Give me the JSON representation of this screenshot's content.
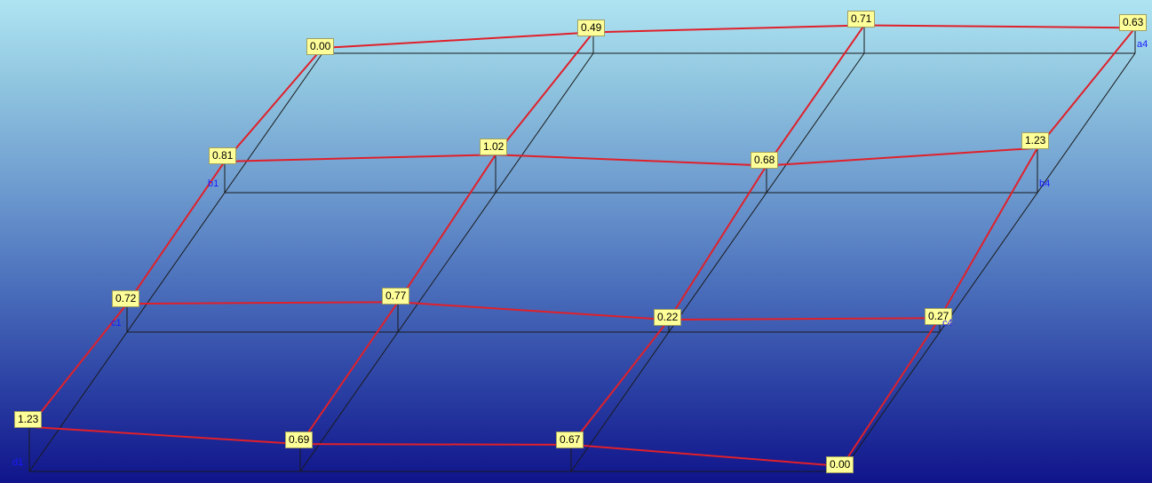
{
  "viewport": {
    "colors": {
      "frame_line": "#1a1a1a",
      "surface_line": "#e0202a",
      "label_background": "#ffff99",
      "corner_label": "#1a1aff"
    }
  },
  "grid": {
    "rows": [
      {
        "row": "a",
        "values": [
          "0.00",
          "0.49",
          "0.71",
          "0.63"
        ]
      },
      {
        "row": "b",
        "values": [
          "0.81",
          "1.02",
          "0.68",
          "1.23"
        ]
      },
      {
        "row": "c",
        "values": [
          "0.72",
          "0.77",
          "0.22",
          "0.27"
        ]
      },
      {
        "row": "d",
        "values": [
          "1.23",
          "0.69",
          "0.67",
          "0.00"
        ]
      }
    ],
    "corner_labels": [
      "a4",
      "b1",
      "b4",
      "c1",
      "c4",
      "d1"
    ]
  }
}
